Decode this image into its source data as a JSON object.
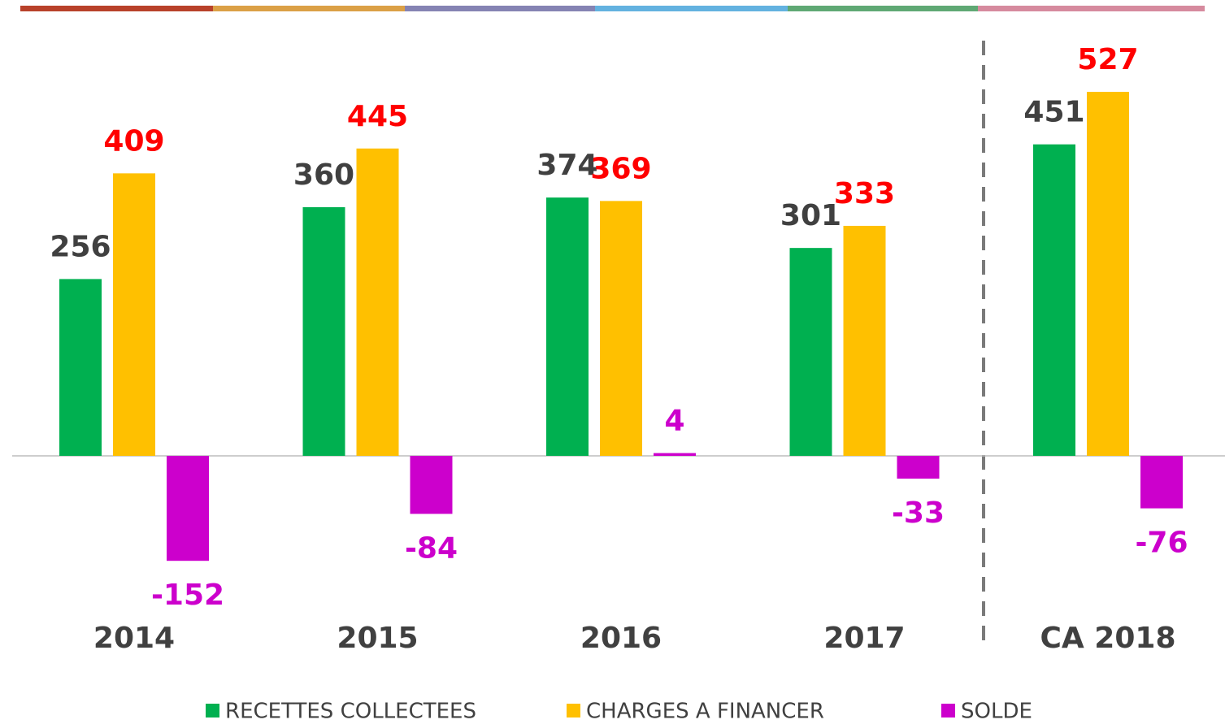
{
  "chart_data": {
    "type": "bar",
    "categories": [
      "2014",
      "2015",
      "2016",
      "2017",
      "CA 2018"
    ],
    "series": [
      {
        "name": "RECETTES COLLECTEES",
        "color": "#00b050",
        "values": [
          256,
          360,
          374,
          301,
          451
        ]
      },
      {
        "name": "CHARGES A FINANCER",
        "color": "#ffc000",
        "values": [
          409,
          445,
          369,
          333,
          527
        ]
      },
      {
        "name": "SOLDE",
        "color": "#cc00cc",
        "values": [
          -152,
          -84,
          4,
          -33,
          -76
        ]
      }
    ],
    "ylim": [
      -180,
      580
    ]
  }
}
